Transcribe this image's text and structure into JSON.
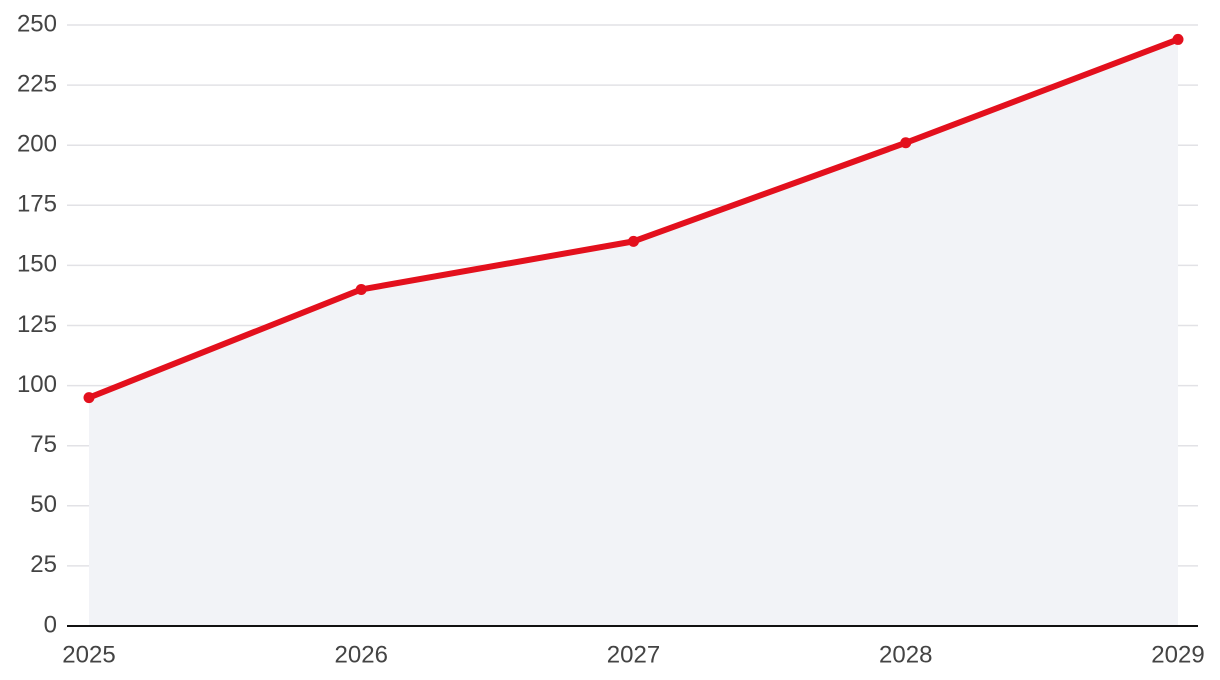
{
  "chart_data": {
    "type": "line",
    "categories": [
      "2025",
      "2026",
      "2027",
      "2028",
      "2029"
    ],
    "series": [
      {
        "values": [
          95,
          140,
          160,
          201,
          244
        ],
        "color": "#e3101d"
      }
    ],
    "area_color": "#f2f3f7",
    "ylim": [
      0,
      250
    ],
    "yticks": [
      0,
      25,
      50,
      75,
      100,
      125,
      150,
      175,
      200,
      225,
      250
    ],
    "grid": true
  }
}
